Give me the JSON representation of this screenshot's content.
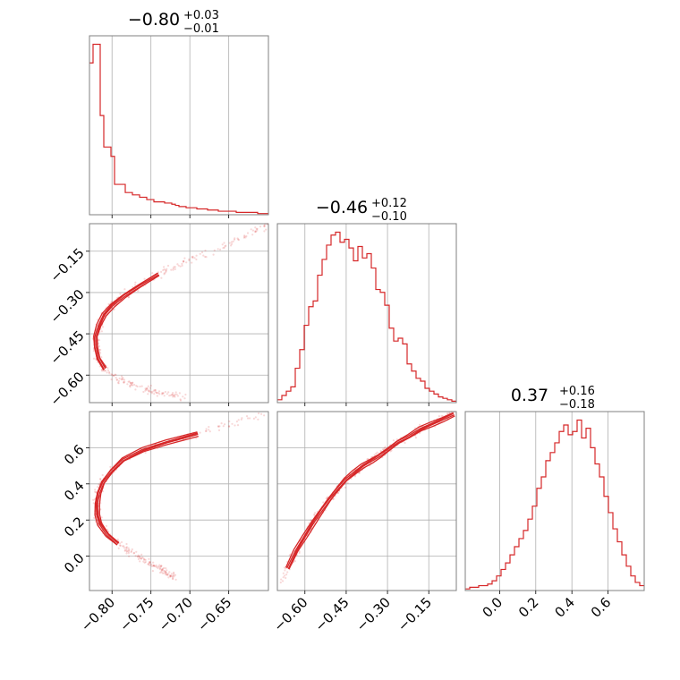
{
  "chart_data": {
    "type": "corner",
    "color": "#d62728",
    "params": [
      {
        "median": "−0.80",
        "plus": "+0.03",
        "minus": "−0.01",
        "range": [
          -0.829,
          -0.599
        ],
        "ticks": [
          -0.8,
          -0.75,
          -0.7,
          -0.65
        ],
        "tick_labels": [
          "−0.80",
          "−0.75",
          "−0.70",
          "−0.65"
        ],
        "hist_values": [
          130,
          146,
          146,
          85,
          58,
          58,
          50,
          26,
          26,
          26,
          19,
          19,
          17,
          17,
          15,
          15,
          13,
          13,
          11,
          11,
          11,
          10,
          10,
          9,
          8,
          7,
          7,
          6,
          6,
          6,
          5,
          5,
          5,
          4,
          4,
          4,
          3,
          3,
          3,
          3,
          3,
          2,
          2,
          2,
          2,
          2,
          2,
          1,
          1,
          1
        ]
      },
      {
        "median": "−0.46",
        "plus": "+0.12",
        "minus": "−0.10",
        "range": [
          -0.7,
          -0.05
        ],
        "ticks": [
          -0.6,
          -0.45,
          -0.3,
          -0.15
        ],
        "tick_labels": [
          "−0.60",
          "−0.45",
          "−0.30",
          "−0.15"
        ],
        "hist_values": [
          2,
          5,
          8,
          11,
          24,
          37,
          54,
          67,
          71,
          89,
          100,
          110,
          117,
          119,
          112,
          114,
          108,
          99,
          109,
          101,
          104,
          94,
          79,
          77,
          68,
          52,
          43,
          45,
          41,
          27,
          22,
          17,
          15,
          10,
          8,
          6,
          4,
          3,
          2,
          1
        ]
      },
      {
        "median": "0.37",
        "plus": "+0.16",
        "minus": "−0.18",
        "range": [
          -0.19,
          0.8
        ],
        "ticks": [
          0.0,
          0.2,
          0.4,
          0.6
        ],
        "tick_labels": [
          "0.0",
          "0.2",
          "0.4",
          "0.6"
        ],
        "hist_values": [
          1,
          2,
          2,
          3,
          3,
          4,
          6,
          9,
          13,
          17,
          22,
          27,
          32,
          37,
          44,
          52,
          63,
          70,
          80,
          85,
          91,
          98,
          102,
          96,
          98,
          105,
          94,
          100,
          88,
          78,
          70,
          58,
          48,
          38,
          30,
          22,
          15,
          9,
          5,
          3
        ]
      }
    ],
    "pairs": [
      {
        "row": 1,
        "col": 0,
        "curve": [
          [
            -0.6,
            -0.05
          ],
          [
            -0.615,
            -0.08
          ],
          [
            -0.64,
            -0.11
          ],
          [
            -0.665,
            -0.14
          ],
          [
            -0.69,
            -0.17
          ],
          [
            -0.715,
            -0.2
          ],
          [
            -0.74,
            -0.235
          ],
          [
            -0.765,
            -0.275
          ],
          [
            -0.785,
            -0.31
          ],
          [
            -0.8,
            -0.345
          ],
          [
            -0.81,
            -0.38
          ],
          [
            -0.816,
            -0.42
          ],
          [
            -0.82,
            -0.46
          ],
          [
            -0.82,
            -0.5
          ],
          [
            -0.818,
            -0.54
          ],
          [
            -0.81,
            -0.58
          ],
          [
            -0.795,
            -0.61
          ],
          [
            -0.775,
            -0.635
          ],
          [
            -0.75,
            -0.655
          ],
          [
            -0.725,
            -0.67
          ],
          [
            -0.705,
            -0.68
          ]
        ]
      },
      {
        "row": 2,
        "col": 0,
        "curve": [
          [
            -0.6,
            0.79
          ],
          [
            -0.64,
            0.74
          ],
          [
            -0.69,
            0.68
          ],
          [
            -0.73,
            0.63
          ],
          [
            -0.76,
            0.585
          ],
          [
            -0.785,
            0.53
          ],
          [
            -0.8,
            0.47
          ],
          [
            -0.812,
            0.41
          ],
          [
            -0.818,
            0.35
          ],
          [
            -0.82,
            0.29
          ],
          [
            -0.819,
            0.23
          ],
          [
            -0.815,
            0.18
          ],
          [
            -0.805,
            0.12
          ],
          [
            -0.792,
            0.07
          ],
          [
            -0.775,
            0.02
          ],
          [
            -0.755,
            -0.03
          ],
          [
            -0.735,
            -0.08
          ],
          [
            -0.72,
            -0.12
          ]
        ]
      },
      {
        "row": 2,
        "col": 1,
        "curve": [
          [
            -0.69,
            -0.15
          ],
          [
            -0.66,
            -0.07
          ],
          [
            -0.63,
            0.03
          ],
          [
            -0.6,
            0.11
          ],
          [
            -0.57,
            0.19
          ],
          [
            -0.54,
            0.26
          ],
          [
            -0.51,
            0.32
          ],
          [
            -0.48,
            0.37
          ],
          [
            -0.45,
            0.42
          ],
          [
            -0.42,
            0.46
          ],
          [
            -0.39,
            0.5
          ],
          [
            -0.36,
            0.53
          ],
          [
            -0.33,
            0.56
          ],
          [
            -0.3,
            0.59
          ],
          [
            -0.26,
            0.63
          ],
          [
            -0.22,
            0.66
          ],
          [
            -0.18,
            0.7
          ],
          [
            -0.14,
            0.73
          ],
          [
            -0.1,
            0.76
          ],
          [
            -0.06,
            0.79
          ]
        ]
      }
    ]
  }
}
